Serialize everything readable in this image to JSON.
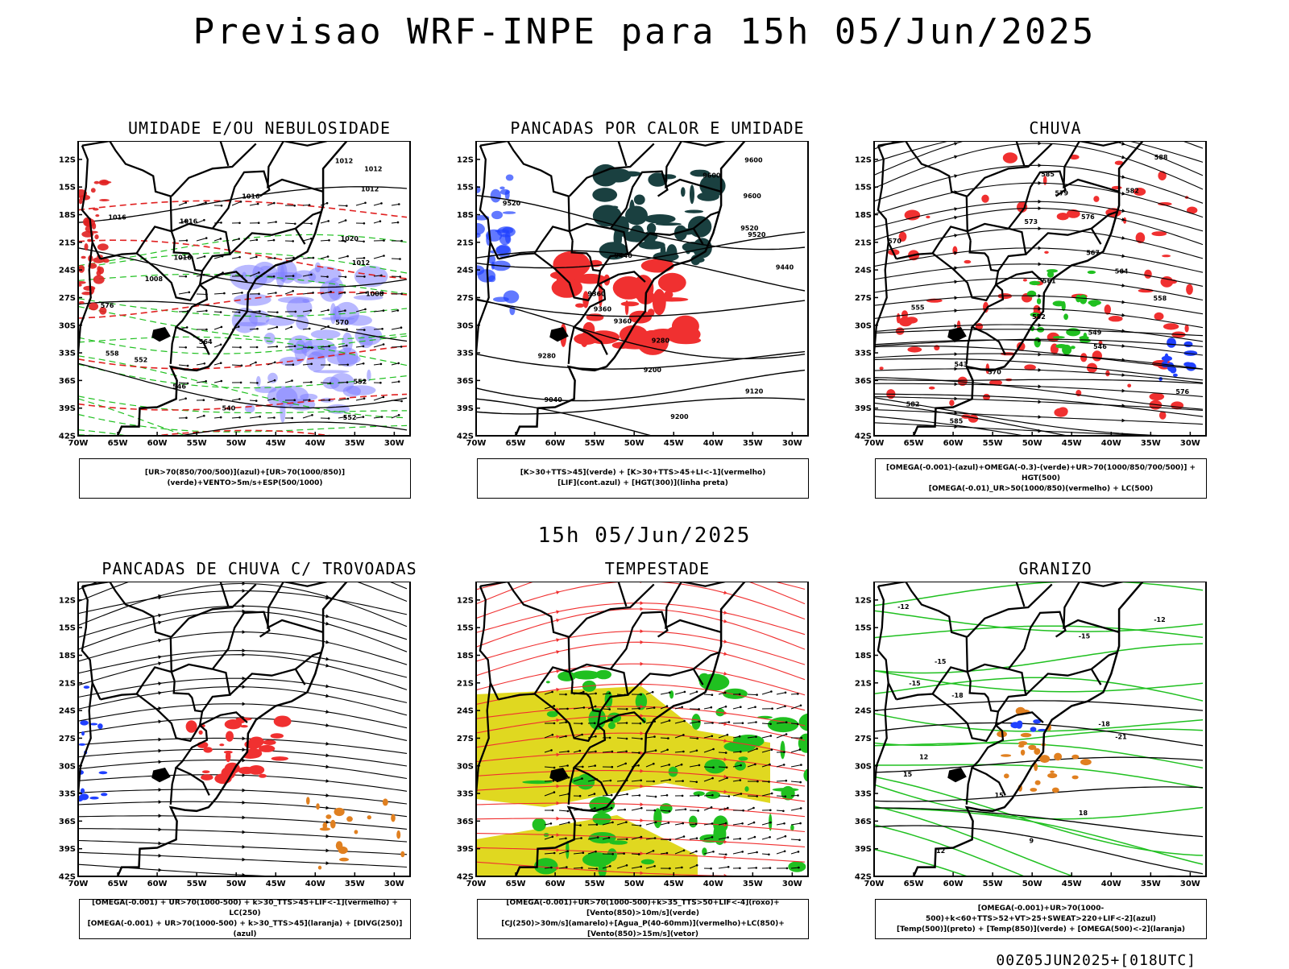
{
  "header": {
    "title": "Previsao WRF-INPE  para 15h 05/Jun/2025",
    "mid_date": "15h 05/Jun/2025",
    "footer_stamp": "00Z05JUN2025+[018UTC]"
  },
  "axes": {
    "lat_labels": [
      "12S",
      "15S",
      "18S",
      "21S",
      "24S",
      "27S",
      "30S",
      "33S",
      "36S",
      "39S",
      "42S"
    ],
    "lon_labels": [
      "70W",
      "65W",
      "60W",
      "55W",
      "50W",
      "45W",
      "40W",
      "35W",
      "30W"
    ]
  },
  "panels": [
    {
      "title": "UMIDADE E/OU NEBULOSIDADE",
      "legend": [
        "[UR>70(850/700/500)](azul)+[UR>70(1000/850)](verde)+VENTO>5m/s+ESP(500/1000)"
      ],
      "contour_labels": [
        "1012",
        "1012",
        "1012",
        "1016",
        "1016",
        "1016",
        "1020",
        "1016",
        "1012",
        "1008",
        "1008",
        "576",
        "570",
        "564",
        "558",
        "552",
        "552",
        "546",
        "540",
        "552"
      ]
    },
    {
      "title": "PANCADAS POR CALOR E UMIDADE",
      "legend": [
        "[K>30+TTS>45](verde) + [K>30+TTS>45+LI<-1](vermelho)",
        "[LIF](cont.azul) + [HGT(300)](linha preta)"
      ],
      "contour_labels": [
        "9600",
        "9600",
        "9600",
        "9520",
        "9520",
        "9520",
        "9440",
        "9440",
        "9360",
        "9360",
        "9360",
        "9280",
        "9280",
        "9200",
        "9120",
        "9040",
        "9200"
      ]
    },
    {
      "title": "CHUVA",
      "legend": [
        "[OMEGA(-0.001)-(azul)+OMEGA(-0.3)-(verde)+UR>70(1000/850/700/500)] + HGT(500)",
        "[OMEGA(-0.01)_UR>50(1000/850)(vermelho) + LC(500)"
      ],
      "contour_labels": [
        "588",
        "585",
        "582",
        "579",
        "576",
        "573",
        "570",
        "567",
        "564",
        "561",
        "558",
        "555",
        "552",
        "549",
        "546",
        "543",
        "570",
        "576",
        "582",
        "585"
      ]
    },
    {
      "title": "PANCADAS DE CHUVA C/ TROVOADAS",
      "legend": [
        "[OMEGA(-0.001) + UR>70(1000-500) + k>30_TTS>45+LIF<-1](vermelho) + LC(250)",
        "[OMEGA(-0.001) + UR>70(1000-500) + k>30_TTS>45](laranja) + [DIVG(250)](azul)"
      ],
      "contour_labels": []
    },
    {
      "title": "TEMPESTADE",
      "legend": [
        "[OMEGA(-0.001)+UR>70(1000-500)+k>35_TTS>50+LIF<-4](roxo)+[Vento(850)>10m/s](verde)",
        "[CJ(250)>30m/s](amarelo)+[Agua_P(40-60mm)](vermelho)+LC(850)+[Vento(850)>15m/s](vetor)"
      ],
      "contour_labels": []
    },
    {
      "title": "GRANIZO",
      "legend": [
        "[OMEGA(-0.001)+UR>70(1000-500)+k<60+TTS>52+VT>25+SWEAT>220+LIF<-2](azul)",
        "[Temp(500)](preto) + [Temp(850)](verde) + [OMEGA(500)<-2](laranja)"
      ],
      "contour_labels": [
        "-12",
        "-12",
        "-15",
        "-15",
        "-15",
        "-18",
        "-18",
        "-21",
        "12",
        "15",
        "15",
        "18",
        "9",
        "12"
      ]
    }
  ]
}
